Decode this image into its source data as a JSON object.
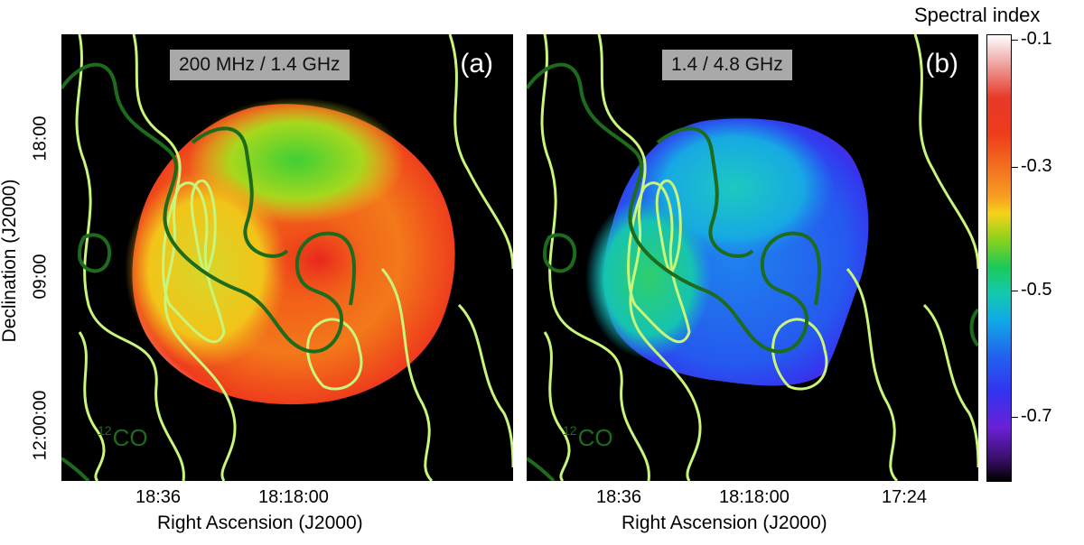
{
  "panels": [
    {
      "id": "(a)",
      "frequency_label": "200 MHz / 1.4 GHz",
      "co_label": {
        "sup": "12",
        "text": "CO"
      },
      "x_ticks": [
        "18:36",
        "18:18:00"
      ]
    },
    {
      "id": "(b)",
      "frequency_label": "1.4 / 4.8 GHz",
      "co_label": {
        "sup": "12",
        "text": "CO"
      },
      "x_ticks": [
        "18:36",
        "18:18:00",
        "17:24"
      ]
    }
  ],
  "axes": {
    "xlabel": "Right Ascension (J2000)",
    "ylabel": "Declination (J2000)",
    "y_ticks": [
      "18:00",
      "09:00",
      "12:00:00"
    ]
  },
  "colorbar": {
    "title": "Spectral index",
    "ticks": [
      "-0.1",
      "-0.3",
      "-0.5",
      "-0.7"
    ]
  },
  "colors": {
    "contour_light": "#c8f57a",
    "contour_dark": "#1d6b1d"
  }
}
